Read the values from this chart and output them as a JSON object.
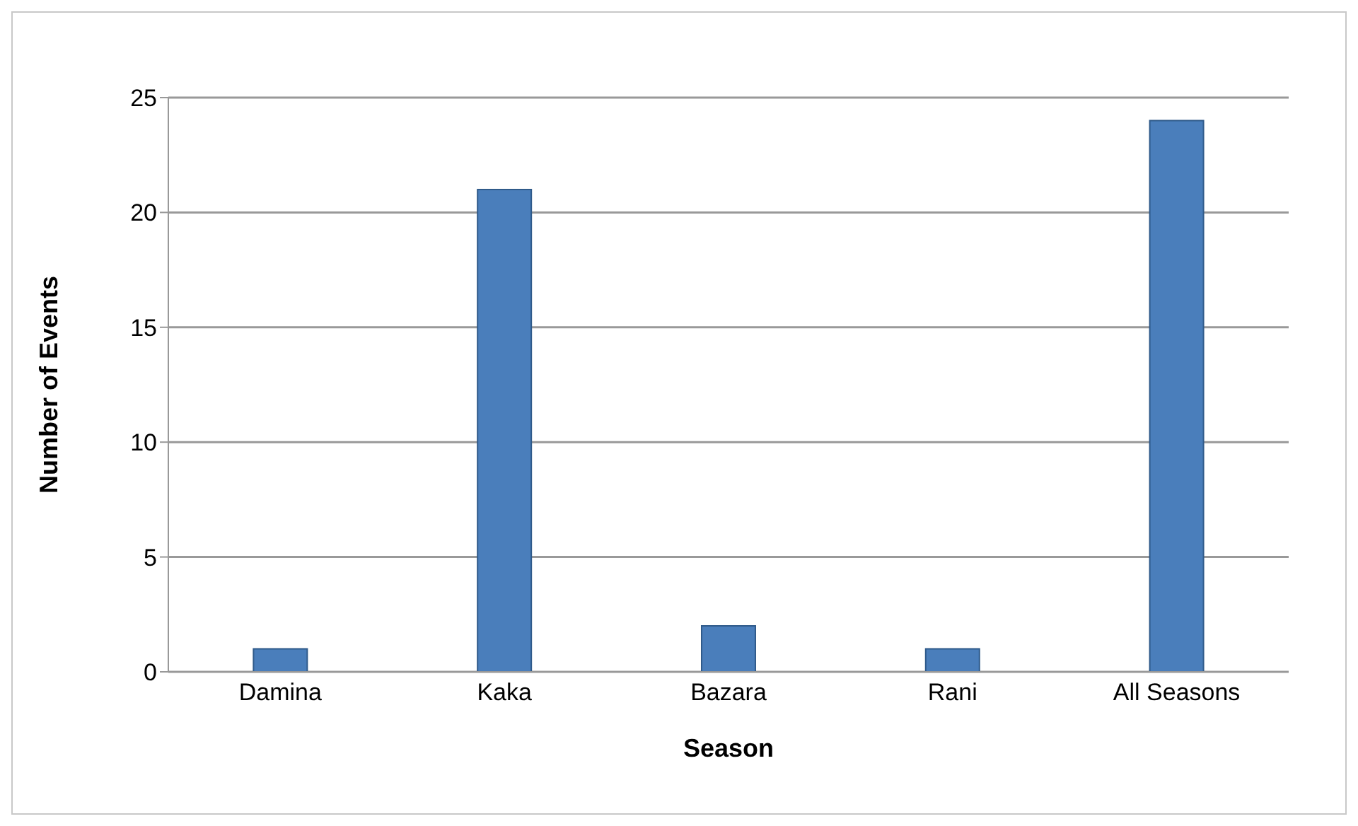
{
  "chart_data": {
    "type": "bar",
    "xlabel": "Season",
    "ylabel": "Number of Events",
    "categories": [
      "Damina",
      "Kaka",
      "Bazara",
      "Rani",
      "All Seasons"
    ],
    "values": [
      1,
      21,
      2,
      1,
      24
    ],
    "color": "#4a7ebb",
    "ylim": [
      0,
      25
    ],
    "yticks": [
      0,
      5,
      10,
      15,
      20,
      25
    ],
    "grid": "y"
  }
}
